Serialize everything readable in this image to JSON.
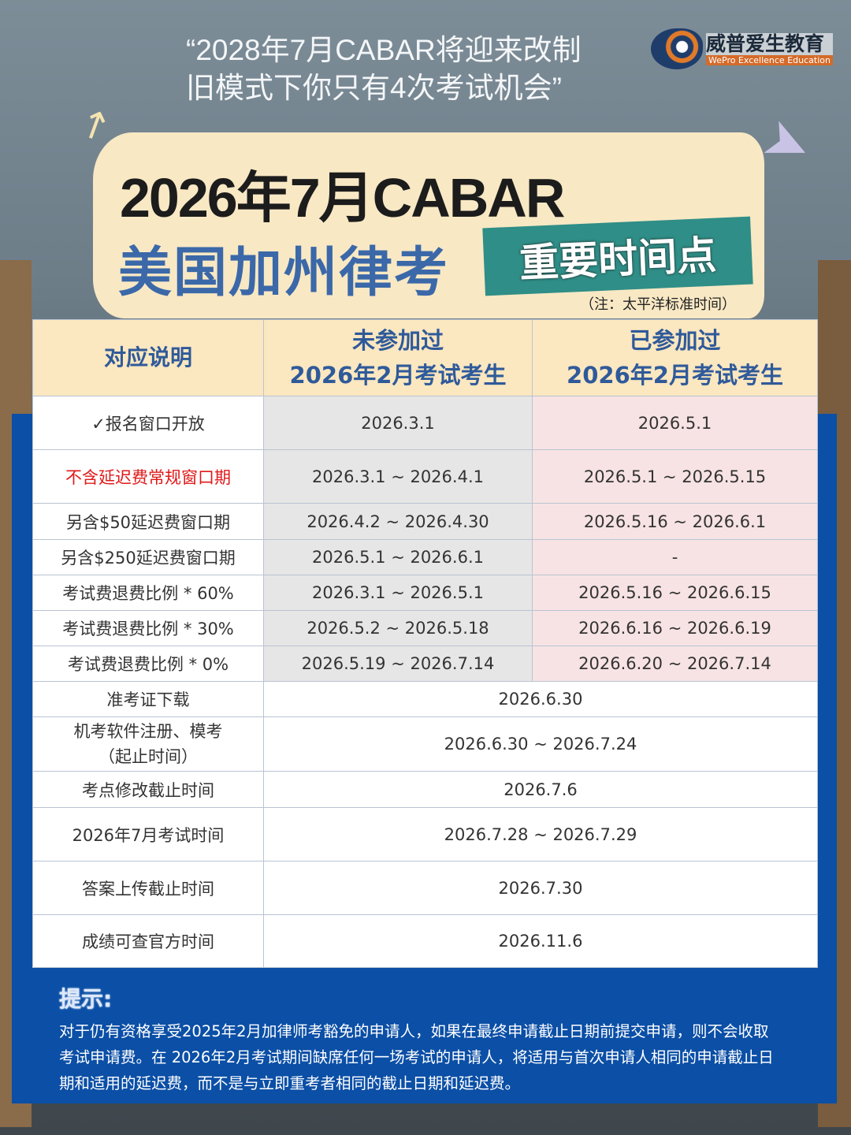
{
  "header": {
    "quote_line1": "“2028年7月CABAR将迎来改制",
    "quote_line2": "旧模式下你只有4次考试机会”"
  },
  "logo": {
    "name_cn": "威普爱生教育",
    "name_en": "WePro Excellence Education"
  },
  "title": {
    "line1": "2026年7月CABAR",
    "line2": "美国加州律考",
    "tag": "重要时间点",
    "note": "（注：太平洋标准时间）"
  },
  "colors": {
    "panel": "#0b4fa6",
    "header_bg": "#fbe7c0",
    "header_text": "#2f5a9a",
    "highlight_red": "#e01818",
    "tag": "#2f8e87"
  },
  "table": {
    "headers": [
      "对应说明",
      "未参加过\n2026年2月考试考生",
      "已参加过\n2026年2月考试考生"
    ],
    "rows": [
      {
        "label": "✓报名窗口开放",
        "a": "2026.3.1",
        "b": "2026.5.1"
      },
      {
        "label": "不含延迟费常规窗口期",
        "a": "2026.3.1 ~ 2026.4.1",
        "b": "2026.5.1 ~ 2026.5.15"
      },
      {
        "label": "另含$50延迟费窗口期",
        "a": "2026.4.2 ~ 2026.4.30",
        "b": "2026.5.16 ~ 2026.6.1"
      },
      {
        "label": "另含$250延迟费窗口期",
        "a": "2026.5.1 ~ 2026.6.1",
        "b": "-"
      },
      {
        "label": "考试费退费比例 * 60%",
        "a": "2026.3.1 ~ 2026.5.1",
        "b": "2026.5.16 ~ 2026.6.15"
      },
      {
        "label": "考试费退费比例 * 30%",
        "a": "2026.5.2 ~ 2026.5.18",
        "b": "2026.6.16 ~ 2026.6.19"
      },
      {
        "label": "考试费退费比例 * 0%",
        "a": "2026.5.19 ~ 2026.7.14",
        "b": "2026.6.20 ~ 2026.7.14"
      },
      {
        "label": "准考证下载",
        "v": "2026.6.30"
      },
      {
        "label": "机考软件注册、模考\n（起止时间）",
        "v": "2026.6.30 ~ 2026.7.24"
      },
      {
        "label": "考点修改截止时间",
        "v": "2026.7.6"
      },
      {
        "label": "2026年7月考试时间",
        "v": "2026.7.28 ~ 2026.7.29"
      },
      {
        "label": "答案上传截止时间",
        "v": "2026.7.30"
      },
      {
        "label": "成绩可查官方时间",
        "v": "2026.11.6"
      }
    ]
  },
  "tip": {
    "title": "提示:",
    "body": "对于仍有资格享受2025年2月加律师考豁免的申请人，如果在最终申请截止日期前提交申请，则不会收取考试申请费。在 2026年2月考试期间缺席任何一场考试的申请人，将适用与首次申请人相同的申请截止日期和适用的延迟费，而不是与立即重考者相同的截止日期和延迟费。"
  }
}
